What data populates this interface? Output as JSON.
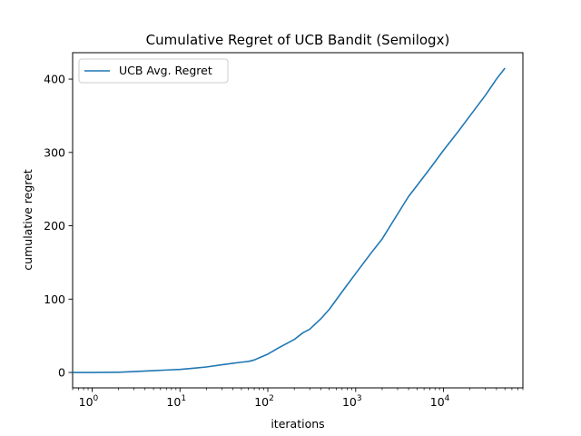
{
  "chart_data": {
    "type": "line",
    "title": "Cumulative Regret of UCB Bandit (Semilogx)",
    "xlabel": "iterations",
    "ylabel": "cumulative regret",
    "xscale": "log",
    "xlim": [
      0.6,
      80000
    ],
    "ylim": [
      -21,
      436
    ],
    "x_ticks": [
      {
        "value": 1,
        "base": "10",
        "exp": "0"
      },
      {
        "value": 10,
        "base": "10",
        "exp": "1"
      },
      {
        "value": 100,
        "base": "10",
        "exp": "2"
      },
      {
        "value": 1000,
        "base": "10",
        "exp": "3"
      },
      {
        "value": 10000,
        "base": "10",
        "exp": "4"
      }
    ],
    "y_ticks": [
      {
        "value": 0,
        "label": "0"
      },
      {
        "value": 100,
        "label": "100"
      },
      {
        "value": 200,
        "label": "200"
      },
      {
        "value": 300,
        "label": "300"
      },
      {
        "value": 400,
        "label": "400"
      }
    ],
    "grid": false,
    "legend_position": "top-left",
    "series": [
      {
        "name": "UCB Avg. Regret",
        "color": "#1f77b4",
        "x": [
          0.6,
          1,
          2,
          3,
          5,
          7,
          10,
          15,
          20,
          30,
          40,
          50,
          60,
          70,
          80,
          100,
          130,
          150,
          200,
          250,
          300,
          400,
          500,
          700,
          1000,
          1500,
          2000,
          3000,
          4000,
          5000,
          7000,
          10000,
          15000,
          20000,
          30000,
          40000,
          50000
        ],
        "y": [
          0,
          0,
          0.3,
          1.2,
          2.5,
          3.3,
          4.2,
          6,
          7.5,
          10.5,
          12.5,
          14,
          15,
          17,
          20,
          25,
          33,
          37,
          45,
          54,
          59,
          73,
          86,
          110,
          135,
          163,
          182,
          216,
          240,
          255,
          278,
          303,
          330,
          350,
          378,
          400,
          415
        ]
      }
    ]
  }
}
